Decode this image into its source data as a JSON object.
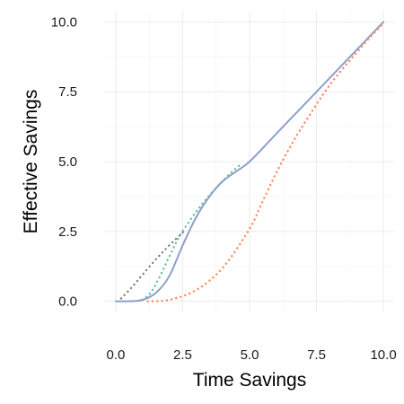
{
  "chart_data": {
    "type": "line",
    "title": "",
    "xlabel": "Time Savings",
    "ylabel": "Effective Savings",
    "xlim": [
      -0.4,
      10.4
    ],
    "ylim": [
      -0.4,
      10.4
    ],
    "x_ticks": [
      "0.0",
      "2.5",
      "5.0",
      "7.5",
      "10.0"
    ],
    "y_ticks": [
      "0.0",
      "2.5",
      "5.0",
      "7.5",
      "10.0"
    ],
    "grid": true,
    "legend": "none",
    "series": [
      {
        "style": "dotted",
        "color": "#7f7f7f",
        "points": [
          [
            0.2,
            0.1
          ],
          [
            0.6,
            0.5
          ],
          [
            1.0,
            0.95
          ],
          [
            1.5,
            1.5
          ],
          [
            2.0,
            2.0
          ],
          [
            2.6,
            2.55
          ]
        ]
      },
      {
        "style": "dotted",
        "color": "#66c2a5",
        "points": [
          [
            1.0,
            0.05
          ],
          [
            1.3,
            0.3
          ],
          [
            1.6,
            0.8
          ],
          [
            2.0,
            1.6
          ],
          [
            2.4,
            2.35
          ],
          [
            3.0,
            3.2
          ],
          [
            3.6,
            3.9
          ],
          [
            4.2,
            4.5
          ],
          [
            4.6,
            4.85
          ]
        ]
      },
      {
        "style": "solid",
        "color": "#8da0cb",
        "points": [
          [
            0.0,
            0.0
          ],
          [
            0.5,
            0.0
          ],
          [
            1.0,
            0.05
          ],
          [
            1.5,
            0.3
          ],
          [
            2.0,
            0.9
          ],
          [
            2.5,
            2.0
          ],
          [
            3.0,
            3.0
          ],
          [
            3.5,
            3.75
          ],
          [
            4.0,
            4.3
          ],
          [
            4.5,
            4.65
          ],
          [
            5.0,
            5.0
          ],
          [
            6.0,
            6.0
          ],
          [
            7.0,
            7.0
          ],
          [
            8.0,
            8.0
          ],
          [
            9.0,
            9.0
          ],
          [
            10.0,
            10.0
          ]
        ]
      },
      {
        "style": "dotted",
        "color": "#fc8d62",
        "points": [
          [
            1.2,
            0.0
          ],
          [
            2.0,
            0.05
          ],
          [
            3.0,
            0.4
          ],
          [
            4.0,
            1.2
          ],
          [
            5.0,
            2.6
          ],
          [
            5.5,
            3.6
          ],
          [
            6.0,
            4.6
          ],
          [
            6.5,
            5.5
          ],
          [
            7.0,
            6.3
          ],
          [
            8.0,
            7.75
          ],
          [
            9.0,
            8.9
          ],
          [
            9.5,
            9.45
          ],
          [
            10.0,
            9.95
          ]
        ]
      }
    ]
  }
}
